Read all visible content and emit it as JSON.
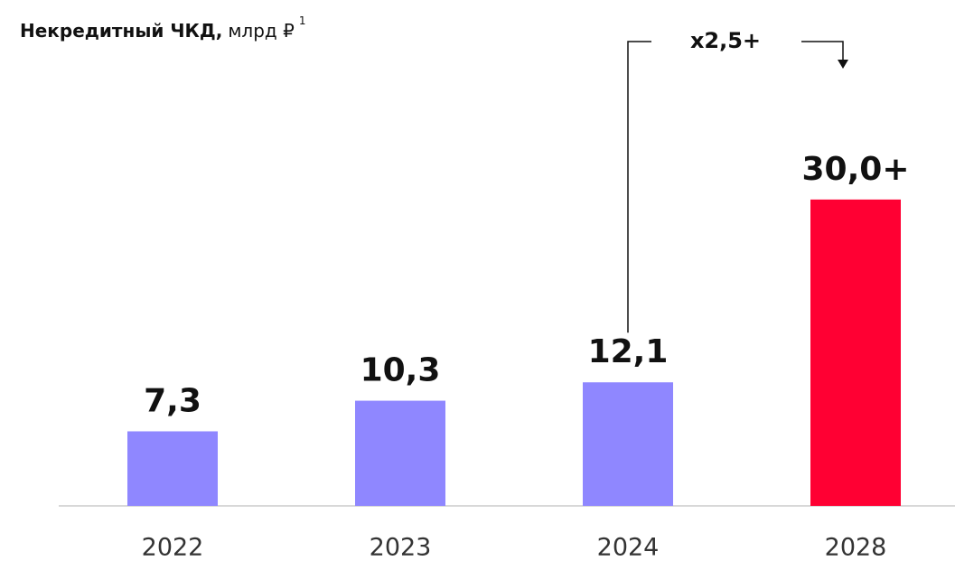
{
  "chart_data": {
    "type": "bar",
    "title": "Некредитный ЧКД,",
    "unit": "млрд ₽",
    "footnote": "1",
    "categories": [
      "2022",
      "2023",
      "2024",
      "2028"
    ],
    "values": [
      7.3,
      10.3,
      12.1,
      30
    ],
    "value_labels": [
      "7,3",
      "10,3",
      "12,1",
      "30,0+"
    ],
    "colors": [
      "#8f87ff",
      "#8f87ff",
      "#8f87ff",
      "#ff0033"
    ],
    "annotation": "x2,5+",
    "ylim": [
      0,
      46
    ]
  }
}
